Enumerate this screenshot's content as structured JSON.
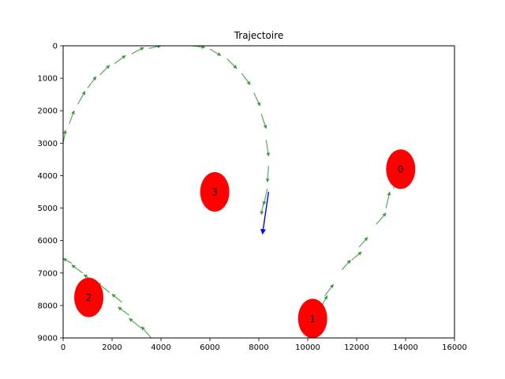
{
  "chart_data": {
    "type": "scatter",
    "title": "Trajectoire",
    "xlabel": "",
    "ylabel": "",
    "xlim": [
      0,
      16000
    ],
    "ylim": [
      9000,
      0
    ],
    "y_inverted": true,
    "grid": false,
    "xticks": [
      0,
      2000,
      4000,
      6000,
      8000,
      10000,
      12000,
      14000,
      16000
    ],
    "yticks": [
      0,
      1000,
      2000,
      3000,
      4000,
      5000,
      6000,
      7000,
      8000,
      9000
    ],
    "waypoints": [
      {
        "label": "0",
        "x": 13800,
        "y": 3800
      },
      {
        "label": "1",
        "x": 10200,
        "y": 8400
      },
      {
        "label": "2",
        "x": 1050,
        "y": 7750
      },
      {
        "label": "3",
        "x": 6200,
        "y": 4500
      }
    ],
    "trajectory_arrows": [
      {
        "x": 10000,
        "y": 8600,
        "dx": 300,
        "dy": -300
      },
      {
        "x": 10700,
        "y": 7700,
        "dx": 350,
        "dy": -350
      },
      {
        "x": 11400,
        "y": 6900,
        "dx": 350,
        "dy": -300
      },
      {
        "x": 12100,
        "y": 6200,
        "dx": 350,
        "dy": -300
      },
      {
        "x": 12800,
        "y": 5500,
        "dx": 400,
        "dy": -350
      },
      {
        "x": 13500,
        "y": 4400,
        "dx": 200,
        "dy": -400
      },
      {
        "x": 13200,
        "y": 5000,
        "dx": 150,
        "dy": -500
      },
      {
        "x": 11800,
        "y": 6600,
        "dx": 400,
        "dy": -250
      },
      {
        "x": 10500,
        "y": 8100,
        "dx": 300,
        "dy": -400
      },
      {
        "x": 3600,
        "y": 9000,
        "dx": -400,
        "dy": -350
      },
      {
        "x": 3200,
        "y": 8700,
        "dx": -500,
        "dy": -300
      },
      {
        "x": 2700,
        "y": 8300,
        "dx": -450,
        "dy": -250
      },
      {
        "x": 2400,
        "y": 7900,
        "dx": -400,
        "dy": -250
      },
      {
        "x": 1900,
        "y": 7600,
        "dx": -500,
        "dy": -300
      },
      {
        "x": 1300,
        "y": 7300,
        "dx": -450,
        "dy": -250
      },
      {
        "x": 800,
        "y": 7000,
        "dx": -450,
        "dy": -250
      },
      {
        "x": 350,
        "y": 6700,
        "dx": -350,
        "dy": -150
      },
      {
        "x": 0,
        "y": 3000,
        "dx": 100,
        "dy": -400
      },
      {
        "x": 250,
        "y": 2400,
        "dx": 200,
        "dy": -400
      },
      {
        "x": 600,
        "y": 1800,
        "dx": 300,
        "dy": -400
      },
      {
        "x": 1000,
        "y": 1300,
        "dx": 350,
        "dy": -350
      },
      {
        "x": 1500,
        "y": 900,
        "dx": 400,
        "dy": -300
      },
      {
        "x": 2100,
        "y": 550,
        "dx": 450,
        "dy": -250
      },
      {
        "x": 2800,
        "y": 250,
        "dx": 500,
        "dy": -200
      },
      {
        "x": 3500,
        "y": 80,
        "dx": 500,
        "dy": -80
      },
      {
        "x": 5300,
        "y": 0,
        "dx": 500,
        "dy": 50
      },
      {
        "x": 6000,
        "y": 100,
        "dx": 450,
        "dy": 200
      },
      {
        "x": 6700,
        "y": 400,
        "dx": 400,
        "dy": 300
      },
      {
        "x": 7300,
        "y": 850,
        "dx": 350,
        "dy": 350
      },
      {
        "x": 7800,
        "y": 1450,
        "dx": 250,
        "dy": 400
      },
      {
        "x": 8100,
        "y": 2100,
        "dx": 200,
        "dy": 450
      },
      {
        "x": 8300,
        "y": 2900,
        "dx": 100,
        "dy": 500
      },
      {
        "x": 8400,
        "y": 3700,
        "dx": -50,
        "dy": 500
      },
      {
        "x": 8350,
        "y": 4400,
        "dx": -150,
        "dy": 500
      },
      {
        "x": 8200,
        "y": 4800,
        "dx": -100,
        "dy": 400
      }
    ],
    "current_heading": {
      "x": 8400,
      "y": 4500,
      "dx": -250,
      "dy": 1300
    }
  }
}
